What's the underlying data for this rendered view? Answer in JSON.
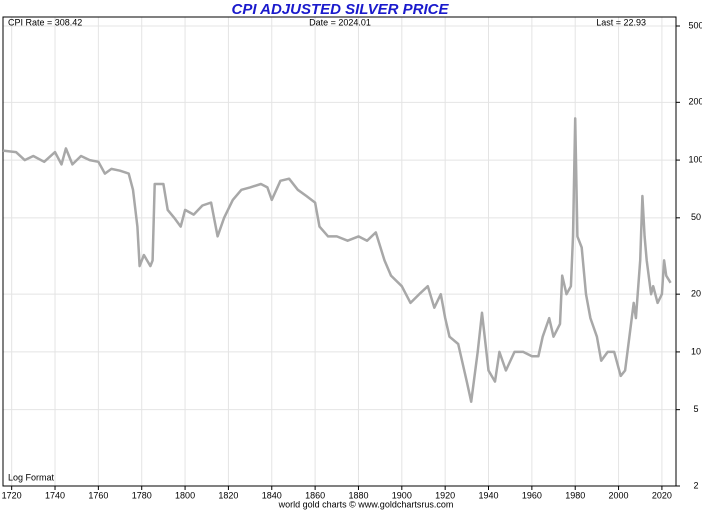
{
  "chart_data": {
    "type": "line",
    "title": "CPI ADJUSTED SILVER PRICE",
    "annotations": [
      "CPI Rate = 308.42",
      "Date = 2024.01",
      "Last = 22.93",
      "Log Format"
    ],
    "source": "world gold charts © www.goldchartsrus.com",
    "yscale": "log",
    "grid": true,
    "color": "#a8a8a8",
    "xlim": [
      1716,
      2026.5
    ],
    "xticks": [
      1720,
      1740,
      1760,
      1780,
      1800,
      1820,
      1840,
      1860,
      1880,
      1900,
      1920,
      1940,
      1960,
      1980,
      2000,
      2020
    ],
    "ylim": [
      2,
      557
    ],
    "yticks": [
      2,
      5,
      10,
      20,
      50,
      100,
      200,
      500
    ],
    "x": [
      1716,
      1722,
      1726,
      1730,
      1735,
      1740,
      1743,
      1745,
      1748,
      1752,
      1756,
      1760,
      1763,
      1766,
      1770,
      1774,
      1776,
      1778,
      1779,
      1781,
      1784,
      1785,
      1786,
      1790,
      1792,
      1795,
      1798,
      1800,
      1804,
      1808,
      1812,
      1815,
      1818,
      1822,
      1826,
      1830,
      1835,
      1838,
      1840,
      1844,
      1848,
      1852,
      1856,
      1860,
      1862,
      1866,
      1870,
      1875,
      1880,
      1884,
      1888,
      1892,
      1895,
      1900,
      1904,
      1908,
      1912,
      1915,
      1918,
      1920,
      1922,
      1926,
      1930,
      1932,
      1935,
      1937,
      1940,
      1943,
      1945,
      1948,
      1952,
      1956,
      1960,
      1963,
      1965,
      1968,
      1970,
      1973,
      1974,
      1976,
      1978,
      1979,
      1980,
      1981,
      1983,
      1985,
      1987,
      1990,
      1992,
      1995,
      1998,
      2001,
      2003,
      2005,
      2007,
      2008,
      2010,
      2011,
      2012,
      2013,
      2015,
      2016,
      2018,
      2020,
      2021,
      2022,
      2024
    ],
    "values": [
      112,
      110,
      100,
      105,
      98,
      110,
      95,
      115,
      95,
      105,
      100,
      98,
      85,
      90,
      88,
      85,
      70,
      45,
      28,
      32,
      28,
      30,
      75,
      75,
      55,
      50,
      45,
      55,
      52,
      58,
      60,
      40,
      50,
      62,
      70,
      72,
      75,
      72,
      62,
      78,
      80,
      70,
      65,
      60,
      45,
      40,
      40,
      38,
      40,
      38,
      42,
      30,
      25,
      22,
      18,
      20,
      22,
      17,
      20,
      15,
      12,
      11,
      7,
      5.5,
      10,
      16,
      8,
      7,
      10,
      8,
      10,
      10,
      9.5,
      9.5,
      12,
      15,
      12,
      14,
      25,
      20,
      22,
      40,
      165,
      40,
      35,
      20,
      15,
      12,
      9,
      10,
      10,
      7.5,
      8,
      12,
      18,
      15,
      30,
      65,
      40,
      30,
      20,
      22,
      18,
      20,
      30,
      25,
      22.93
    ]
  }
}
